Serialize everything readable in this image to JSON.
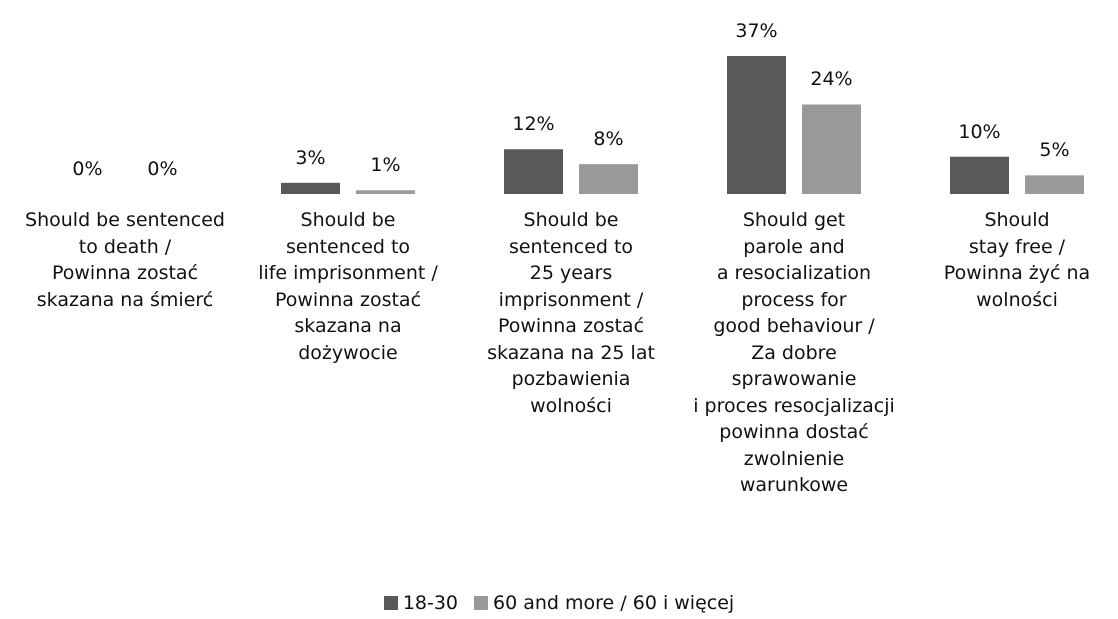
{
  "chart_data": {
    "type": "bar",
    "categories": [
      "Should be sentenced\nto death /\nPowinna zostać\nskazana na śmierć",
      "Should be\nsentenced to\nlife imprisonment /\nPowinna zostać\nskazana na\ndożywocie",
      "Should be\nsentenced to\n25 years\nimprisonment /\nPowinna zostać\nskazana na 25 lat\npozbawienia\nwolności",
      "Should get\nparole and\na resocialization\nprocess for\ngood behaviour /\nZa dobre\nsprawowanie\ni proces resocjalizacji\npowinna dostać\nzwolnienie\nwarunkowe",
      "Should\nstay free /\nPowinna żyć na\nwolności"
    ],
    "series": [
      {
        "name": "18-30",
        "color": "#595959",
        "values": [
          0,
          3,
          12,
          37,
          10
        ],
        "value_labels": [
          "0%",
          "3%",
          "12%",
          "37%",
          "10%"
        ]
      },
      {
        "name": "60 and more / 60 i więcej",
        "color": "#999999",
        "values": [
          0,
          1,
          8,
          24,
          5
        ],
        "value_labels": [
          "0%",
          "1%",
          "8%",
          "24%",
          "5%"
        ]
      }
    ],
    "legend": "bottom"
  }
}
